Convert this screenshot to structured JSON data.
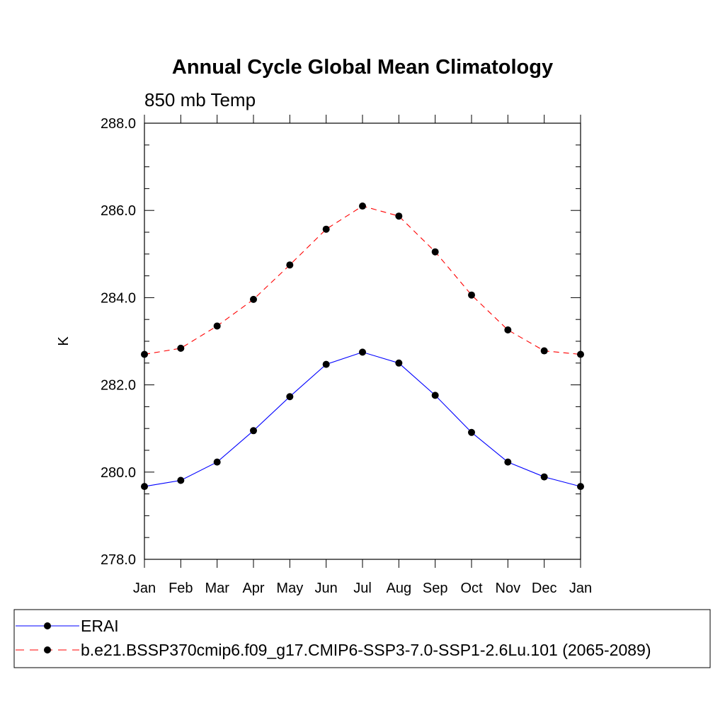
{
  "chart_data": {
    "type": "line",
    "title": "Annual Cycle Global Mean Climatology",
    "subtitle": "850 mb Temp",
    "xlabel": "",
    "ylabel": "K",
    "categories": [
      "Jan",
      "Feb",
      "Mar",
      "Apr",
      "May",
      "Jun",
      "Jul",
      "Aug",
      "Sep",
      "Oct",
      "Nov",
      "Dec",
      "Jan"
    ],
    "ylim": [
      278.0,
      288.0
    ],
    "y_ticks": [
      "278.0",
      "280.0",
      "282.0",
      "284.0",
      "286.0",
      "288.0"
    ],
    "grid": false,
    "legend_placement": "bottom",
    "series": [
      {
        "name": "ERAI",
        "color": "#0000ff",
        "line_style": "solid",
        "marker": "filled-circle",
        "values": [
          279.67,
          279.81,
          280.23,
          280.95,
          281.73,
          282.47,
          282.75,
          282.5,
          281.76,
          280.91,
          280.23,
          279.89,
          279.67
        ]
      },
      {
        "name": "b.e21.BSSP370cmip6.f09_g17.CMIP6-SSP3-7.0-SSP1-2.6Lu.101 (2065-2089)",
        "color": "#ff0000",
        "line_style": "dashed",
        "marker": "filled-circle",
        "values": [
          282.7,
          282.84,
          283.35,
          283.96,
          284.75,
          285.57,
          286.1,
          285.87,
          285.05,
          284.06,
          283.26,
          282.78,
          282.7
        ]
      }
    ]
  }
}
